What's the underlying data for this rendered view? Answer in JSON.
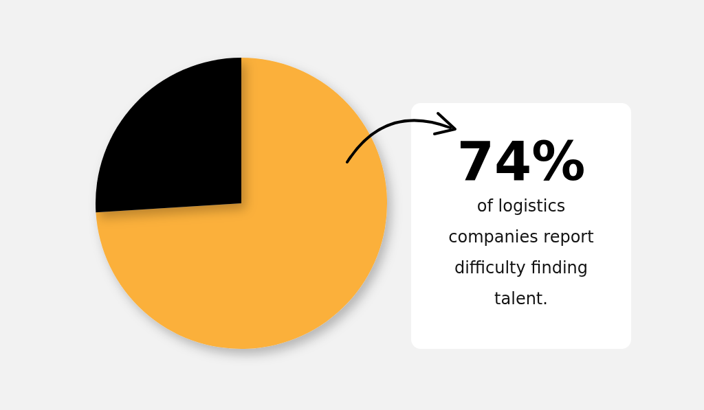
{
  "chart_data": {
    "type": "pie",
    "categories": [
      null,
      null
    ],
    "values": [
      74,
      26
    ],
    "colors": [
      "#fbb03b",
      "#000000"
    ],
    "annotations": [
      "74%",
      "of logistics companies report difficulty finding talent."
    ]
  }
}
